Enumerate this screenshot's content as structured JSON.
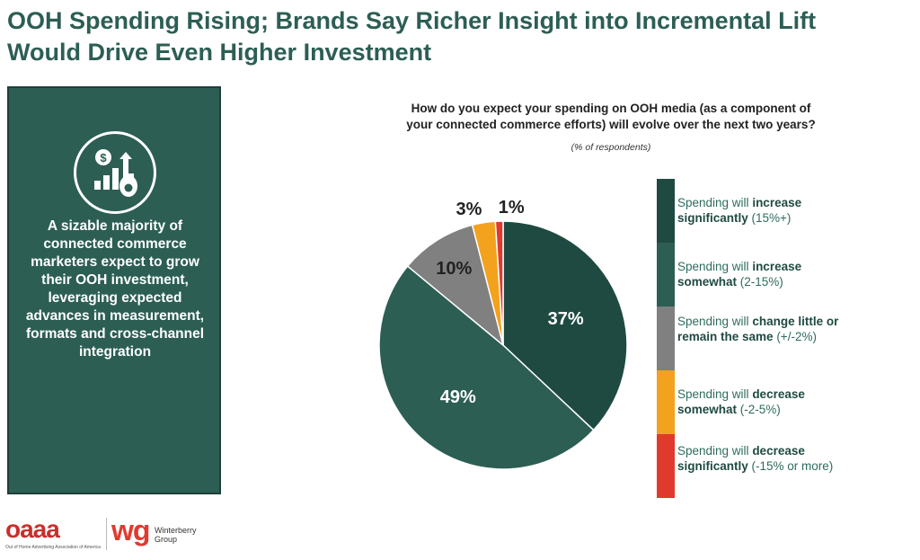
{
  "title": {
    "line1": "OOH Spending Rising; Brands Say Richer Insight into Incremental Lift",
    "line2": "Would Drive Even Higher Investment"
  },
  "side_panel": {
    "icon": "money-growth-icon",
    "text": "A sizable majority of connected commerce marketers expect to grow their OOH investment, leveraging expected advances in measurement, formats and cross-channel integration"
  },
  "legend": [
    {
      "pre": "Spending will ",
      "bold": "increase significantly",
      "post": " (15%+)",
      "color": "#1f4a42"
    },
    {
      "pre": "Spending will ",
      "bold": "increase somewhat",
      "post": " (2-15%)",
      "color": "#2c5e54"
    },
    {
      "pre": "Spending will ",
      "bold": "change little or remain the same",
      "post": " (+/-2%)",
      "color": "#808080"
    },
    {
      "pre": "Spending will ",
      "bold": "decrease somewhat",
      "post": " (-2-5%)",
      "color": "#f3a21d"
    },
    {
      "pre": "Spending will ",
      "bold": "decrease significantly",
      "post": " (-15% or more)",
      "color": "#e03a2f"
    }
  ],
  "chart_data": {
    "type": "pie",
    "title": "How do you expect your spending on OOH media (as a component of your connected commerce efforts) will evolve over the next two years?",
    "title_line1": "How do you expect your spending on OOH media (as a component of",
    "title_line2": "your connected commerce efforts) will evolve over the next two years?",
    "subtitle": "(% of respondents)",
    "start": "12 o'clock",
    "direction": "clockwise",
    "slices": [
      {
        "name": "Increase significantly (15%+)",
        "value": 37,
        "label": "37%",
        "color": "#1f4a42",
        "label_color": "#ffffff"
      },
      {
        "name": "Increase somewhat (2-15%)",
        "value": 49,
        "label": "49%",
        "color": "#2c5e54",
        "label_color": "#ffffff"
      },
      {
        "name": "Change little or remain the same (+/-2%)",
        "value": 10,
        "label": "10%",
        "color": "#808080",
        "label_color": "#222222"
      },
      {
        "name": "Decrease somewhat (-2-5%)",
        "value": 3,
        "label": "3%",
        "color": "#f3a21d",
        "label_color": "#222222"
      },
      {
        "name": "Decrease significantly (-15% or more)",
        "value": 1,
        "label": "1%",
        "color": "#e03a2f",
        "label_color": "#222222"
      }
    ]
  },
  "footer": {
    "oaaa_logo": "oaaa",
    "oaaa_tagline": "Out of Home Advertising Association of America",
    "wg_logo": "wg",
    "wg_name": "Winterberry Group"
  }
}
